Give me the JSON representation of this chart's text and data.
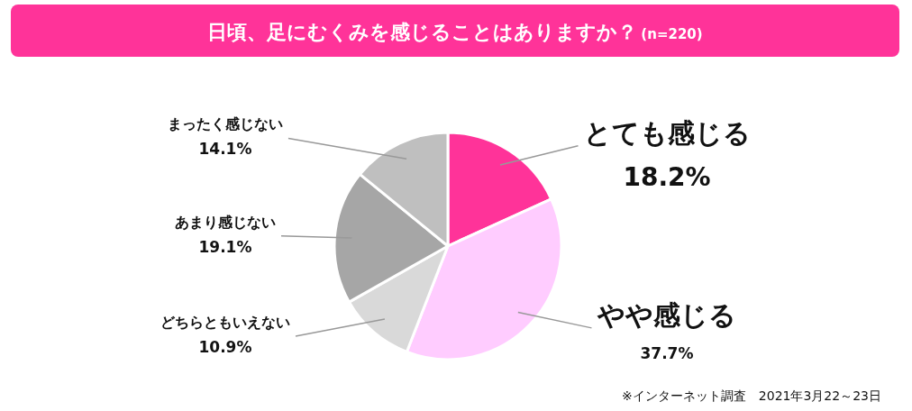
{
  "chart_data": {
    "type": "pie",
    "title": "日頃、足にむくみを感じることはありますか？",
    "subtitle": "(n=220)",
    "categories": [
      "とても感じる",
      "やや感じる",
      "どちらともいえない",
      "あまり感じない",
      "まったく感じない"
    ],
    "values": [
      18.2,
      37.7,
      10.9,
      19.1,
      14.1
    ],
    "colors": [
      "#ff3399",
      "#ffccff",
      "#d9d9d9",
      "#a6a6a6",
      "#bfbfbf"
    ],
    "value_labels": [
      "18.2%",
      "37.7%",
      "10.9%",
      "19.1%",
      "14.1%"
    ],
    "legend": false,
    "annotations": [
      "※インターネット調査　2021年3月22～23日"
    ]
  }
}
